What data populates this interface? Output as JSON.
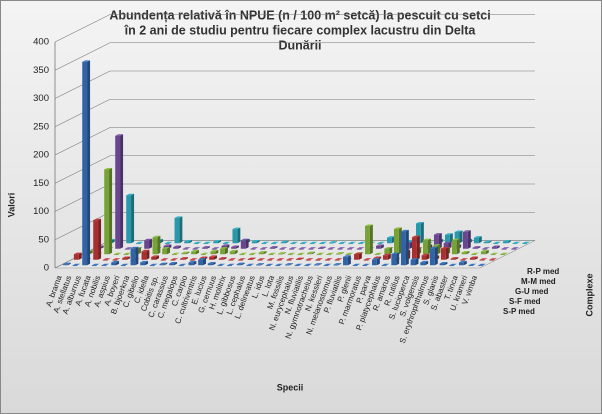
{
  "chart_data": {
    "type": "bar3d",
    "title": [
      "Abundența relativă în NPUE (n / 100 m² setcă) la pescuit cu setci",
      "în 2 ani de studiu pentru fiecare complex lacustru din Delta",
      "Dunării"
    ],
    "y_label": "Valori",
    "x_label": "Specii",
    "z_label": "Complexe",
    "categories": [
      "A. brama",
      "A. stellatus",
      "A. alburnus",
      "A. fucata",
      "A. nobilis",
      "A. aspius",
      "A. boyeri",
      "B. bjoerkna",
      "C. gibelio",
      "C. idella",
      "Cobitis sp.",
      "C. carassius",
      "C. megalops",
      "C. carpio",
      "C. cultriventris",
      "E. lucius",
      "G. cernuus",
      "H. molitrix",
      "L. gibbosus",
      "L. cephalus",
      "L. delineatus",
      "L. idus",
      "L. lota",
      "M. fossilis",
      "N. eurycephalus",
      "N. fluviatilis",
      "N. gymnotrachelus",
      "N. kessleri",
      "N. melanostomus",
      "P. fluviatilis",
      "P. glenii",
      "P. marmoratus",
      "P. parva",
      "P. platycephalus",
      "R. amarus",
      "R. rutilus",
      "S. lucioperca",
      "S. volgensis",
      "S. erythrophthalmus",
      "S. glanis",
      "S. abaster",
      "T. tinca",
      "U. krameri",
      "V. vimba"
    ],
    "series": [
      {
        "name": "S-P med",
        "color": "#3a76c4",
        "values": [
          2,
          0,
          360,
          0,
          0,
          5,
          0,
          30,
          5,
          0,
          2,
          3,
          0,
          5,
          10,
          3,
          0,
          0,
          2,
          0,
          1,
          0,
          0,
          1,
          0,
          0,
          1,
          0,
          1,
          15,
          0,
          0,
          10,
          0,
          20,
          60,
          10,
          5,
          30,
          3,
          0,
          5,
          0,
          0
        ]
      },
      {
        "name": "S-F med",
        "color": "#c8373a",
        "values": [
          10,
          0,
          70,
          0,
          0,
          3,
          0,
          15,
          5,
          0,
          0,
          2,
          0,
          3,
          5,
          2,
          0,
          0,
          1,
          0,
          0,
          0,
          0,
          1,
          0,
          0,
          0,
          0,
          0,
          10,
          0,
          3,
          8,
          0,
          15,
          40,
          8,
          5,
          20,
          2,
          0,
          3,
          0,
          0
        ]
      },
      {
        "name": "G-U med",
        "color": "#8cbf3f",
        "values": [
          5,
          0,
          150,
          0,
          0,
          10,
          0,
          30,
          10,
          0,
          2,
          5,
          0,
          5,
          10,
          5,
          0,
          0,
          3,
          0,
          1,
          0,
          0,
          2,
          0,
          0,
          1,
          0,
          1,
          50,
          0,
          10,
          45,
          0,
          10,
          25,
          15,
          10,
          25,
          3,
          0,
          5,
          0,
          0
        ]
      },
      {
        "name": "M-M med",
        "color": "#7b52a8",
        "values": [
          3,
          0,
          200,
          0,
          0,
          15,
          0,
          5,
          3,
          0,
          0,
          2,
          0,
          5,
          3,
          15,
          0,
          0,
          2,
          0,
          0,
          0,
          0,
          1,
          0,
          0,
          0,
          0,
          0,
          5,
          0,
          3,
          10,
          0,
          5,
          25,
          10,
          5,
          30,
          2,
          0,
          3,
          0,
          0
        ]
      },
      {
        "name": "R-P med",
        "color": "#2fb3c9",
        "values": [
          5,
          0,
          85,
          0,
          0,
          5,
          0,
          45,
          3,
          0,
          0,
          3,
          0,
          25,
          5,
          3,
          0,
          0,
          2,
          0,
          0,
          0,
          0,
          1,
          0,
          0,
          0,
          0,
          0,
          10,
          0,
          3,
          35,
          0,
          5,
          15,
          20,
          5,
          10,
          2,
          0,
          3,
          0,
          0
        ]
      }
    ],
    "ylim": [
      0,
      400
    ],
    "yticks": [
      0,
      50,
      100,
      150,
      200,
      250,
      300,
      350,
      400
    ],
    "grid": true
  }
}
